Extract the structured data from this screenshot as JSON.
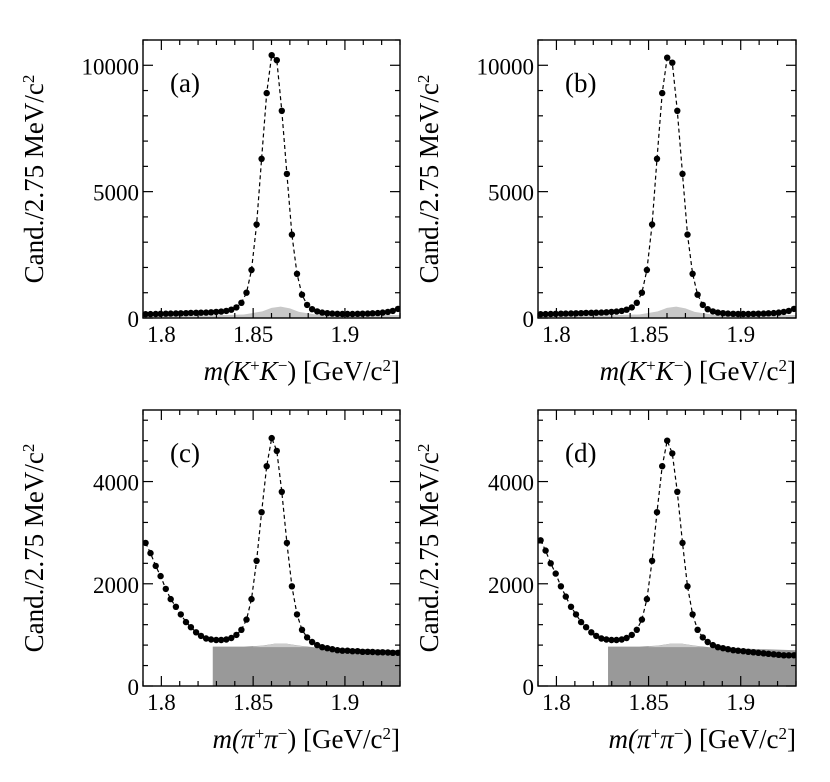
{
  "chart_data": [
    {
      "type": "scatter",
      "panel_label": "(a)",
      "xlabel_prefix": "m(K",
      "xlabel_sup1": "+",
      "xlabel_mid": "K",
      "xlabel_sup2": "−",
      "xlabel_suffix": ") [GeV/c",
      "xlabel_sup3": "2",
      "xlabel_end": "]",
      "ylabel": "Cand./2.75 MeV/c",
      "ylabel_sup": "2",
      "xlim": [
        1.79,
        1.93
      ],
      "ylim": [
        0,
        11000
      ],
      "xticks": [
        "1.8",
        "1.85",
        "1.9"
      ],
      "xtick_values": [
        1.8,
        1.85,
        1.9
      ],
      "yticks": [
        "0",
        "5000",
        "10000"
      ],
      "ytick_values": [
        0,
        5000,
        10000
      ],
      "series": [
        {
          "name": "data",
          "x": [
            1.7914,
            1.7941,
            1.7969,
            1.7996,
            1.8024,
            1.8051,
            1.8079,
            1.8106,
            1.8134,
            1.8161,
            1.8189,
            1.8216,
            1.8244,
            1.8271,
            1.8299,
            1.8326,
            1.8354,
            1.8381,
            1.8409,
            1.8436,
            1.8464,
            1.8491,
            1.8519,
            1.8546,
            1.8574,
            1.8601,
            1.8629,
            1.8656,
            1.8684,
            1.8711,
            1.8739,
            1.8766,
            1.8794,
            1.8821,
            1.8849,
            1.8876,
            1.8904,
            1.8931,
            1.8959,
            1.8986,
            1.9014,
            1.9041,
            1.9069,
            1.9096,
            1.9124,
            1.9151,
            1.9179,
            1.9206,
            1.9234,
            1.9261,
            1.9289
          ],
          "y": [
            150,
            155,
            160,
            165,
            170,
            175,
            180,
            185,
            190,
            200,
            205,
            210,
            215,
            225,
            240,
            255,
            280,
            330,
            420,
            600,
            1000,
            1900,
            3700,
            6300,
            8900,
            10400,
            10200,
            8200,
            5700,
            3300,
            1750,
            920,
            520,
            350,
            260,
            215,
            190,
            175,
            165,
            160,
            160,
            160,
            165,
            170,
            175,
            185,
            195,
            215,
            240,
            280,
            360
          ]
        },
        {
          "name": "background",
          "x": [
            1.79,
            1.83,
            1.845,
            1.855,
            1.86,
            1.865,
            1.87,
            1.875,
            1.885,
            1.93
          ],
          "y": [
            100,
            110,
            140,
            260,
            400,
            450,
            380,
            240,
            130,
            120
          ]
        }
      ]
    },
    {
      "type": "scatter",
      "panel_label": "(b)",
      "xlabel_prefix": "m(K",
      "xlabel_sup1": "+",
      "xlabel_mid": "K",
      "xlabel_sup2": "−",
      "xlabel_suffix": ") [GeV/c",
      "xlabel_sup3": "2",
      "xlabel_end": "]",
      "ylabel": "Cand./2.75 MeV/c",
      "ylabel_sup": "2",
      "xlim": [
        1.79,
        1.93
      ],
      "ylim": [
        0,
        11000
      ],
      "xticks": [
        "1.8",
        "1.85",
        "1.9"
      ],
      "xtick_values": [
        1.8,
        1.85,
        1.9
      ],
      "yticks": [
        "0",
        "5000",
        "10000"
      ],
      "ytick_values": [
        0,
        5000,
        10000
      ],
      "series": [
        {
          "name": "data",
          "x": [
            1.7914,
            1.7941,
            1.7969,
            1.7996,
            1.8024,
            1.8051,
            1.8079,
            1.8106,
            1.8134,
            1.8161,
            1.8189,
            1.8216,
            1.8244,
            1.8271,
            1.8299,
            1.8326,
            1.8354,
            1.8381,
            1.8409,
            1.8436,
            1.8464,
            1.8491,
            1.8519,
            1.8546,
            1.8574,
            1.8601,
            1.8629,
            1.8656,
            1.8684,
            1.8711,
            1.8739,
            1.8766,
            1.8794,
            1.8821,
            1.8849,
            1.8876,
            1.8904,
            1.8931,
            1.8959,
            1.8986,
            1.9014,
            1.9041,
            1.9069,
            1.9096,
            1.9124,
            1.9151,
            1.9179,
            1.9206,
            1.9234,
            1.9261,
            1.9289
          ],
          "y": [
            150,
            155,
            160,
            165,
            170,
            175,
            180,
            185,
            190,
            200,
            205,
            210,
            215,
            225,
            240,
            255,
            280,
            330,
            420,
            600,
            1000,
            1900,
            3700,
            6300,
            8900,
            10300,
            10100,
            8200,
            5700,
            3300,
            1750,
            920,
            520,
            350,
            260,
            215,
            190,
            175,
            165,
            160,
            160,
            160,
            165,
            170,
            175,
            185,
            195,
            215,
            240,
            280,
            360
          ]
        },
        {
          "name": "background",
          "x": [
            1.79,
            1.83,
            1.845,
            1.855,
            1.86,
            1.865,
            1.87,
            1.875,
            1.885,
            1.93
          ],
          "y": [
            100,
            110,
            140,
            260,
            400,
            450,
            380,
            240,
            130,
            120
          ]
        }
      ]
    },
    {
      "type": "scatter",
      "panel_label": "(c)",
      "xlabel_prefix": "m(π",
      "xlabel_sup1": "+",
      "xlabel_mid": "π",
      "xlabel_sup2": "−",
      "xlabel_suffix": ") [GeV/c",
      "xlabel_sup3": "2",
      "xlabel_end": "]",
      "ylabel": "Cand./2.75 MeV/c",
      "ylabel_sup": "2",
      "xlim": [
        1.79,
        1.93
      ],
      "ylim": [
        0,
        5400
      ],
      "xticks": [
        "1.8",
        "1.85",
        "1.9"
      ],
      "xtick_values": [
        1.8,
        1.85,
        1.9
      ],
      "yticks": [
        "0",
        "2000",
        "4000"
      ],
      "ytick_values": [
        0,
        2000,
        4000
      ],
      "series": [
        {
          "name": "data",
          "x": [
            1.7914,
            1.7941,
            1.7969,
            1.7996,
            1.8024,
            1.8051,
            1.8079,
            1.8106,
            1.8134,
            1.8161,
            1.8189,
            1.8216,
            1.8244,
            1.8271,
            1.8299,
            1.8326,
            1.8354,
            1.8381,
            1.8409,
            1.8436,
            1.8464,
            1.8491,
            1.8519,
            1.8546,
            1.8574,
            1.8601,
            1.8629,
            1.8656,
            1.8684,
            1.8711,
            1.8739,
            1.8766,
            1.8794,
            1.8821,
            1.8849,
            1.8876,
            1.8904,
            1.8931,
            1.8959,
            1.8986,
            1.9014,
            1.9041,
            1.9069,
            1.9096,
            1.9124,
            1.9151,
            1.9179,
            1.9206,
            1.9234,
            1.9261,
            1.9289
          ],
          "y": [
            2800,
            2600,
            2350,
            2150,
            1900,
            1700,
            1550,
            1400,
            1250,
            1150,
            1050,
            980,
            930,
            910,
            900,
            900,
            910,
            940,
            1000,
            1100,
            1300,
            1700,
            2450,
            3400,
            4300,
            4850,
            4600,
            3800,
            2800,
            1950,
            1400,
            1100,
            950,
            860,
            800,
            760,
            740,
            720,
            700,
            690,
            690,
            680,
            680,
            670,
            670,
            665,
            660,
            660,
            655,
            650,
            650
          ]
        },
        {
          "name": "background",
          "x": [
            1.828,
            1.845,
            1.855,
            1.862,
            1.868,
            1.875,
            1.885,
            1.93
          ],
          "y": [
            770,
            770,
            790,
            830,
            830,
            790,
            750,
            700
          ]
        }
      ]
    },
    {
      "type": "scatter",
      "panel_label": "(d)",
      "xlabel_prefix": "m(π",
      "xlabel_sup1": "+",
      "xlabel_mid": "π",
      "xlabel_sup2": "−",
      "xlabel_suffix": ") [GeV/c",
      "xlabel_sup3": "2",
      "xlabel_end": "]",
      "ylabel": "Cand./2.75 MeV/c",
      "ylabel_sup": "2",
      "xlim": [
        1.79,
        1.93
      ],
      "ylim": [
        0,
        5400
      ],
      "xticks": [
        "1.8",
        "1.85",
        "1.9"
      ],
      "xtick_values": [
        1.8,
        1.85,
        1.9
      ],
      "yticks": [
        "0",
        "2000",
        "4000"
      ],
      "ytick_values": [
        0,
        2000,
        4000
      ],
      "series": [
        {
          "name": "data",
          "x": [
            1.7914,
            1.7941,
            1.7969,
            1.7996,
            1.8024,
            1.8051,
            1.8079,
            1.8106,
            1.8134,
            1.8161,
            1.8189,
            1.8216,
            1.8244,
            1.8271,
            1.8299,
            1.8326,
            1.8354,
            1.8381,
            1.8409,
            1.8436,
            1.8464,
            1.8491,
            1.8519,
            1.8546,
            1.8574,
            1.8601,
            1.8629,
            1.8656,
            1.8684,
            1.8711,
            1.8739,
            1.8766,
            1.8794,
            1.8821,
            1.8849,
            1.8876,
            1.8904,
            1.8931,
            1.8959,
            1.8986,
            1.9014,
            1.9041,
            1.9069,
            1.9096,
            1.9124,
            1.9151,
            1.9179,
            1.9206,
            1.9234,
            1.9261,
            1.9289
          ],
          "y": [
            2850,
            2650,
            2400,
            2200,
            1950,
            1750,
            1550,
            1400,
            1250,
            1150,
            1050,
            980,
            930,
            910,
            900,
            900,
            910,
            940,
            1000,
            1100,
            1300,
            1700,
            2450,
            3400,
            4300,
            4800,
            4550,
            3800,
            2800,
            1950,
            1400,
            1100,
            950,
            860,
            800,
            760,
            740,
            720,
            700,
            690,
            680,
            670,
            660,
            650,
            640,
            630,
            620,
            610,
            600,
            600,
            600
          ]
        },
        {
          "name": "background",
          "x": [
            1.828,
            1.845,
            1.855,
            1.862,
            1.868,
            1.875,
            1.885,
            1.93
          ],
          "y": [
            770,
            770,
            790,
            830,
            830,
            790,
            750,
            700
          ]
        }
      ]
    }
  ]
}
